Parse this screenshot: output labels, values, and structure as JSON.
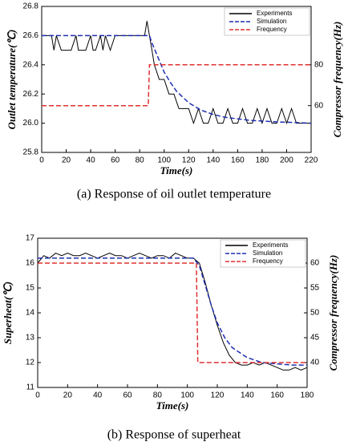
{
  "chart_data": [
    {
      "type": "line",
      "caption": "(a) Response of oil outlet temperature",
      "xlabel": "Time(s)",
      "ylabel": "Outlet temperature(℃)",
      "y2label": "Compressor frequency(Hz)",
      "xlim": [
        0,
        220
      ],
      "xticks": [
        0,
        20,
        40,
        60,
        80,
        100,
        120,
        140,
        160,
        180,
        200,
        220
      ],
      "ylim": [
        25.8,
        26.8
      ],
      "yticks": [
        25.8,
        {
          "value": 26,
          "label": "26.0"
        },
        26.2,
        26.4,
        26.6,
        26.8
      ],
      "y2lim": [
        37.1,
        108.6
      ],
      "y2ticks": [
        60,
        80
      ],
      "legend": "upper right",
      "series": [
        {
          "name": "Experiments",
          "color": "#000000",
          "dash": "solid",
          "x": [
            0,
            4,
            8,
            10,
            12,
            16,
            20,
            24,
            28,
            30,
            32,
            36,
            40,
            42,
            44,
            48,
            50,
            52,
            56,
            60,
            64,
            68,
            72,
            76,
            80,
            84,
            86,
            88,
            90,
            92,
            96,
            100,
            104,
            108,
            112,
            116,
            120,
            124,
            128,
            132,
            136,
            140,
            144,
            148,
            152,
            156,
            160,
            164,
            168,
            172,
            176,
            180,
            184,
            188,
            192,
            196,
            200,
            204,
            208,
            212,
            216,
            220
          ],
          "values": [
            26.6,
            26.6,
            26.6,
            26.5,
            26.6,
            26.5,
            26.5,
            26.5,
            26.6,
            26.5,
            26.5,
            26.5,
            26.6,
            26.5,
            26.5,
            26.6,
            26.5,
            26.6,
            26.5,
            26.6,
            26.6,
            26.6,
            26.6,
            26.6,
            26.6,
            26.6,
            26.7,
            26.6,
            26.5,
            26.4,
            26.3,
            26.3,
            26.2,
            26.2,
            26.1,
            26.1,
            26.1,
            26.0,
            26.1,
            26.0,
            26.0,
            26.1,
            26.0,
            26.0,
            26.1,
            26.0,
            26.0,
            26.1,
            26.0,
            26.0,
            26.1,
            26.0,
            26.1,
            26.0,
            26.0,
            26.1,
            26.0,
            26.1,
            26.0,
            26.0,
            26.0,
            26.0
          ]
        },
        {
          "name": "Simulation",
          "color": "#1f2fb0",
          "dash": "dashed",
          "x": [
            0,
            88,
            90,
            95,
            100,
            105,
            110,
            120,
            130,
            140,
            150,
            170,
            190,
            220
          ],
          "values": [
            26.6,
            26.6,
            26.55,
            26.45,
            26.35,
            26.28,
            26.22,
            26.14,
            26.09,
            26.06,
            26.04,
            26.02,
            26.01,
            26.0
          ]
        },
        {
          "name": "Frequency",
          "color": "#e03030",
          "dash": "dashed",
          "axis": "y2",
          "x": [
            0,
            87,
            88,
            220
          ],
          "values": [
            60,
            60,
            80,
            80
          ]
        }
      ]
    },
    {
      "type": "line",
      "caption": "(b) Response of superheat",
      "xlabel": "Time(s)",
      "ylabel": "Superheat(℃)",
      "y2label": "Compressor frequency(Hz)",
      "xlim": [
        0,
        180
      ],
      "xticks": [
        0,
        20,
        40,
        60,
        80,
        100,
        120,
        140,
        160,
        180
      ],
      "ylim": [
        11,
        17
      ],
      "yticks": [
        11,
        12,
        13,
        14,
        15,
        16,
        17
      ],
      "y2lim": [
        35,
        65
      ],
      "y2ticks": [
        40,
        45,
        50,
        55,
        60
      ],
      "legend": "upper right",
      "series": [
        {
          "name": "Experiments",
          "color": "#000000",
          "dash": "solid",
          "x": [
            0,
            4,
            8,
            12,
            16,
            20,
            24,
            28,
            32,
            36,
            40,
            44,
            48,
            52,
            56,
            60,
            64,
            68,
            72,
            76,
            80,
            84,
            88,
            92,
            96,
            100,
            104,
            108,
            112,
            116,
            120,
            124,
            128,
            132,
            136,
            140,
            144,
            148,
            152,
            156,
            160,
            164,
            168,
            172,
            176,
            180
          ],
          "values": [
            16.0,
            16.3,
            16.2,
            16.4,
            16.3,
            16.4,
            16.3,
            16.3,
            16.4,
            16.3,
            16.2,
            16.3,
            16.4,
            16.3,
            16.3,
            16.2,
            16.3,
            16.4,
            16.3,
            16.2,
            16.3,
            16.3,
            16.2,
            16.4,
            16.3,
            16.2,
            16.2,
            16.0,
            15.2,
            14.3,
            13.5,
            12.8,
            12.3,
            12.0,
            11.9,
            11.9,
            12.0,
            11.9,
            12.0,
            11.9,
            11.8,
            11.7,
            11.7,
            11.8,
            11.7,
            11.8
          ]
        },
        {
          "name": "Simulation",
          "color": "#1f2fb0",
          "dash": "dashed",
          "x": [
            0,
            104,
            108,
            112,
            116,
            120,
            125,
            130,
            135,
            140,
            145,
            150,
            160,
            170,
            180
          ],
          "values": [
            16.2,
            16.2,
            15.9,
            15.1,
            14.3,
            13.6,
            13.0,
            12.6,
            12.4,
            12.2,
            12.1,
            12.0,
            11.95,
            11.9,
            11.9
          ]
        },
        {
          "name": "Frequency",
          "color": "#e03030",
          "dash": "dashed",
          "axis": "y2",
          "x": [
            0,
            106,
            107,
            180
          ],
          "values": [
            60,
            60,
            40,
            40
          ]
        }
      ]
    }
  ]
}
